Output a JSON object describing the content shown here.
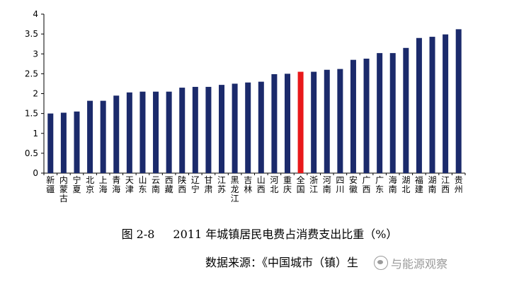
{
  "chart_data": {
    "type": "bar",
    "categories": [
      "新疆",
      "内蒙古",
      "宁夏",
      "北京",
      "上海",
      "青海",
      "天津",
      "山东",
      "云南",
      "西藏",
      "陕西",
      "辽宁",
      "甘肃",
      "江苏",
      "黑龙江",
      "吉林",
      "山西",
      "河北",
      "重庆",
      "全国",
      "浙江",
      "河南",
      "四川",
      "安徽",
      "广西",
      "广东",
      "海南",
      "湖北",
      "福建",
      "湖南",
      "江西",
      "贵州"
    ],
    "values": [
      1.5,
      1.52,
      1.55,
      1.82,
      1.82,
      1.95,
      2.03,
      2.05,
      2.05,
      2.05,
      2.15,
      2.17,
      2.17,
      2.22,
      2.25,
      2.28,
      2.3,
      2.49,
      2.5,
      2.55,
      2.55,
      2.6,
      2.62,
      2.85,
      2.88,
      3.02,
      3.02,
      3.15,
      3.4,
      3.43,
      3.49,
      3.62
    ],
    "ylim": [
      0,
      4
    ],
    "yticks": [
      "0",
      "0.5",
      "1",
      "1.5",
      "2",
      "2.5",
      "3",
      "3.5",
      "4"
    ],
    "highlight_category": "全国",
    "bar_color": "#1b2a6b",
    "highlight_color": "#e8191b",
    "grid": false
  },
  "caption": {
    "figure_number": "图 2-8",
    "title": "2011 年城镇居民电费占消费支出比重（%）"
  },
  "source": {
    "text": "数据来源：《中国城市（镇）生"
  },
  "watermark": {
    "text": "与能源观察",
    "icon": "wechat-icon"
  }
}
